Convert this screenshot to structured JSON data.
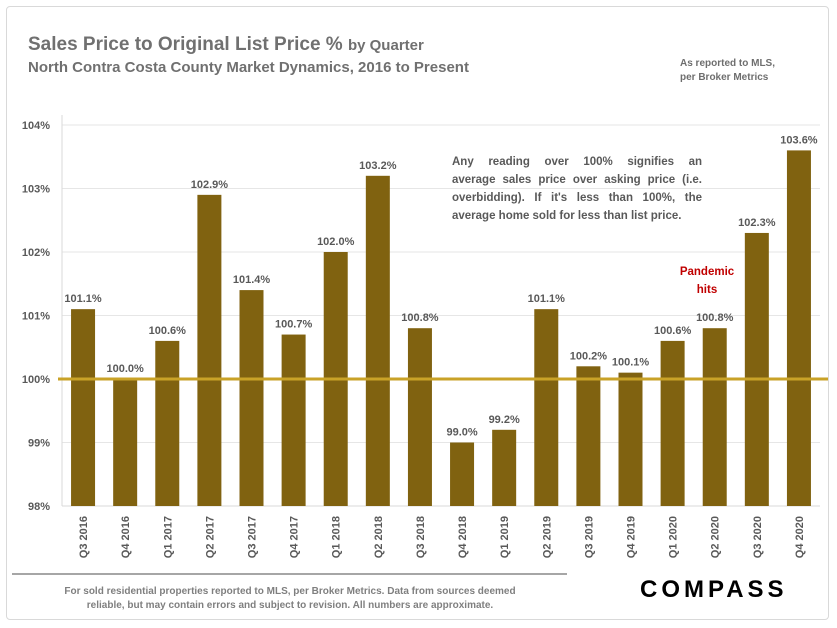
{
  "header": {
    "title_main": "Sales Price to Original List Price %",
    "title_suffix": "by Quarter",
    "subtitle": "North Contra Costa County Market Dynamics, 2016 to Present",
    "source_line1": "As reported to MLS,",
    "source_line2": "per Broker Metrics"
  },
  "annotations": {
    "callout_lines": [
      "Any reading over 100% signifies an",
      "average sales price over asking price (i.e.",
      "overbidding). If it's less than 100%, the",
      "average home sold for less than list price."
    ],
    "pandemic_line1": "Pandemic",
    "pandemic_line2": "hits"
  },
  "footer": {
    "line1": "For sold residential properties reported to MLS, per Broker Metrics. Data from sources deemed",
    "line2": "reliable, but may contain errors and subject to revision. All numbers are approximate.",
    "logo": "COMPASS"
  },
  "colors": {
    "bar": "#806210",
    "reference_line": "#c9a227",
    "pandemic_text": "#c00000"
  },
  "chart_data": {
    "type": "bar",
    "categories": [
      "Q3 2016",
      "Q4 2016",
      "Q1 2017",
      "Q2 2017",
      "Q3 2017",
      "Q4 2017",
      "Q1 2018",
      "Q2 2018",
      "Q3 2018",
      "Q4 2018",
      "Q1 2019",
      "Q2 2019",
      "Q3 2019",
      "Q4 2019",
      "Q1 2020",
      "Q2 2020",
      "Q3 2020",
      "Q4 2020"
    ],
    "values": [
      101.1,
      100.0,
      100.6,
      102.9,
      101.4,
      100.7,
      102.0,
      103.2,
      100.8,
      99.0,
      99.2,
      101.1,
      100.2,
      100.1,
      100.6,
      100.8,
      102.3,
      103.6
    ],
    "value_labels": [
      "101.1%",
      "100.0%",
      "100.6%",
      "102.9%",
      "101.4%",
      "100.7%",
      "102.0%",
      "103.2%",
      "100.8%",
      "99.0%",
      "99.2%",
      "101.1%",
      "100.2%",
      "100.1%",
      "100.6%",
      "100.8%",
      "102.3%",
      "103.6%"
    ],
    "y_ticks": [
      98,
      99,
      100,
      101,
      102,
      103,
      104
    ],
    "y_tick_labels": [
      "98%",
      "99%",
      "100%",
      "101%",
      "102%",
      "103%",
      "104%"
    ],
    "ylim": [
      98,
      104
    ],
    "reference_value": 100,
    "grid": true,
    "legend": "none"
  }
}
